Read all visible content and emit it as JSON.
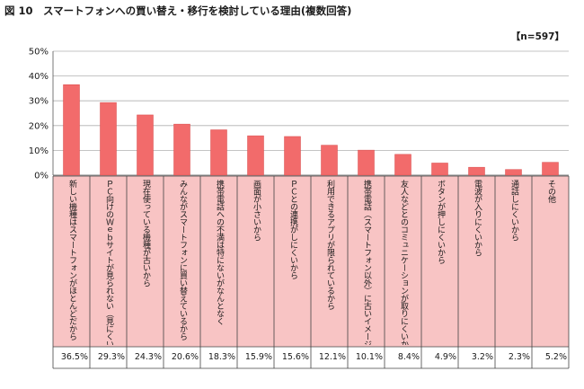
{
  "header": {
    "title": "図 10　スマートフォンへの買い替え・移行を検討している理由(複数回答)",
    "n_label": "【n=597】"
  },
  "colors": {
    "bar": "#f26b6b",
    "bar_edge": "#d94c4c",
    "label_bg": "#f8c4c4",
    "grid": "#b0b0b0"
  },
  "chart_data": {
    "type": "bar",
    "title": "",
    "xlabel": "",
    "ylabel": "",
    "ylim": [
      0,
      50
    ],
    "yticks": [
      "0%",
      "10%",
      "20%",
      "30%",
      "40%",
      "50%"
    ],
    "ytick_values": [
      0,
      10,
      20,
      30,
      40,
      50
    ],
    "grid": true,
    "categories": [
      "新しい機種はスマートフォンがほとんどだから",
      "ＰＣ向けのＷｅｂサイトが見られない（見にくい）から",
      "現在使っている機種が古いから",
      "みんながスマートフォンに買い替えているから",
      "携帯電話への不満は特にないがなんとなく",
      "画面が小さいから",
      "ＰＣとの連携がしにくいから",
      "利用できるアプリが限られているから",
      "携帯電話（スマートフォン以外）に古いイメージがあるから",
      "友人などとのコミュニケーションが取りにくいから",
      "ボタンが押しにくいから",
      "電波が入りにくいから",
      "通話しにくいから",
      "その他"
    ],
    "values": [
      36.5,
      29.3,
      24.3,
      20.6,
      18.3,
      15.9,
      15.6,
      12.1,
      10.1,
      8.4,
      4.9,
      3.2,
      2.3,
      5.2
    ],
    "value_labels": [
      "36.5%",
      "29.3%",
      "24.3%",
      "20.6%",
      "18.3%",
      "15.9%",
      "15.6%",
      "12.1%",
      "10.1%",
      "8.4%",
      "4.9%",
      "3.2%",
      "2.3%",
      "5.2%"
    ]
  }
}
